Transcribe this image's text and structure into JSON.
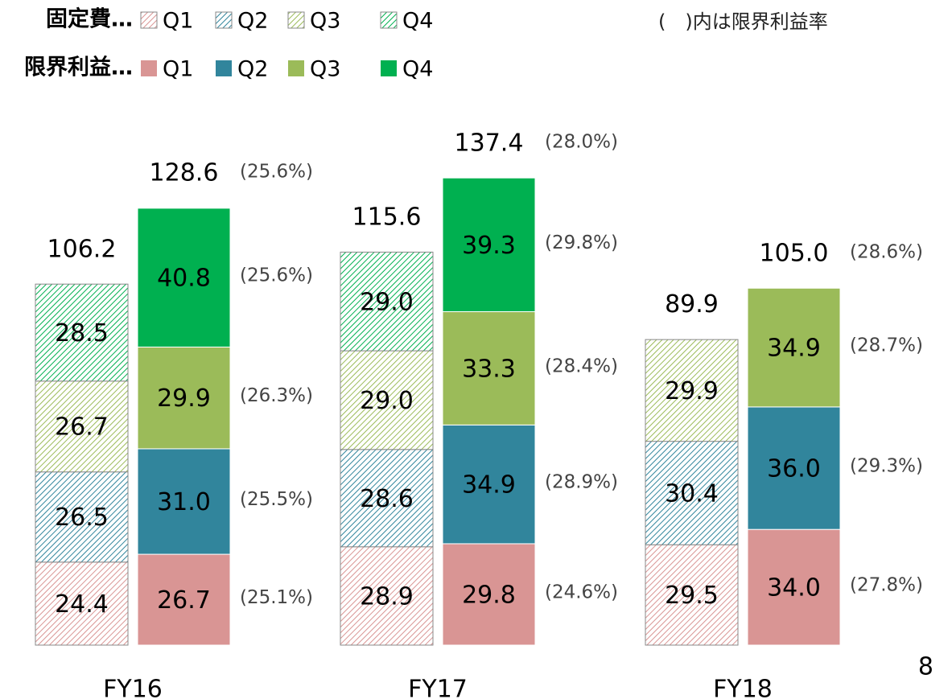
{
  "chart_data": {
    "type": "stacked_grouped_bar",
    "annotation": "(　)内は限界利益率",
    "page_number": "8",
    "categories": [
      "FY16",
      "FY17",
      "FY18"
    ],
    "ylim": [
      0,
      150
    ],
    "groups": [
      {
        "name": "固定費…",
        "hatched": true,
        "totals": [
          106.2,
          115.6,
          89.9
        ],
        "total_labels": [
          "106.2",
          "115.6",
          "89.9"
        ],
        "series": [
          {
            "name": "Q1",
            "color": "#d99594",
            "values": [
              24.4,
              28.9,
              29.5
            ],
            "value_labels": [
              "24.4",
              "28.9",
              "29.5"
            ]
          },
          {
            "name": "Q2",
            "color": "#31859c",
            "values": [
              26.5,
              28.6,
              30.4
            ],
            "value_labels": [
              "26.5",
              "28.6",
              "30.4"
            ]
          },
          {
            "name": "Q3",
            "color": "#9bbb59",
            "values": [
              26.7,
              29.0,
              29.9
            ],
            "value_labels": [
              "26.7",
              "29.0",
              "29.9"
            ]
          },
          {
            "name": "Q4",
            "color": "#00b050",
            "values": [
              28.5,
              29.0,
              null
            ],
            "value_labels": [
              "28.5",
              "29.0",
              null
            ]
          }
        ]
      },
      {
        "name": "限界利益…",
        "hatched": false,
        "totals": [
          128.6,
          137.4,
          105.0
        ],
        "total_labels": [
          "128.6",
          "137.4",
          "105.0"
        ],
        "total_rate_labels": [
          "(25.6%)",
          "(28.0%)",
          "(28.6%)"
        ],
        "series": [
          {
            "name": "Q1",
            "color": "#d99594",
            "values": [
              26.7,
              29.8,
              34.0
            ],
            "value_labels": [
              "26.7",
              "29.8",
              "34.0"
            ],
            "rate_labels": [
              "(25.1%)",
              "(24.6%)",
              "(27.8%)"
            ]
          },
          {
            "name": "Q2",
            "color": "#31859c",
            "values": [
              31.0,
              34.9,
              36.0
            ],
            "value_labels": [
              "31.0",
              "34.9",
              "36.0"
            ],
            "rate_labels": [
              "(25.5%)",
              "(28.9%)",
              "(29.3%)"
            ]
          },
          {
            "name": "Q3",
            "color": "#9bbb59",
            "values": [
              29.9,
              33.3,
              34.9
            ],
            "value_labels": [
              "29.9",
              "33.3",
              "34.9"
            ],
            "rate_labels": [
              "(26.3%)",
              "(28.4%)",
              "(28.7%)"
            ]
          },
          {
            "name": "Q4",
            "color": "#00b050",
            "values": [
              40.8,
              39.3,
              null
            ],
            "value_labels": [
              "40.8",
              "39.3",
              null
            ],
            "rate_labels": [
              "(25.6%)",
              "(29.8%)",
              null
            ]
          }
        ]
      }
    ]
  }
}
